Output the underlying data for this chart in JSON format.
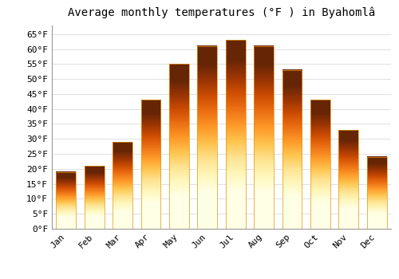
{
  "title": "Average monthly temperatures (°F ) in Byahomlâ",
  "months": [
    "Jan",
    "Feb",
    "Mar",
    "Apr",
    "May",
    "Jun",
    "Jul",
    "Aug",
    "Sep",
    "Oct",
    "Nov",
    "Dec"
  ],
  "values": [
    19,
    21,
    29,
    43,
    55,
    61,
    63,
    61,
    53,
    43,
    33,
    24
  ],
  "bar_color_top": "#FFC84A",
  "bar_color_bottom": "#F5A623",
  "background_color": "#ffffff",
  "grid_color": "#e0e0e0",
  "ylim": [
    0,
    68
  ],
  "yticks": [
    0,
    5,
    10,
    15,
    20,
    25,
    30,
    35,
    40,
    45,
    50,
    55,
    60,
    65
  ],
  "title_fontsize": 10,
  "tick_fontsize": 8,
  "font_family": "monospace"
}
